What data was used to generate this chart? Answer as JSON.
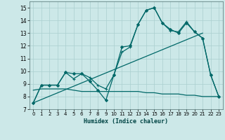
{
  "title": "",
  "xlabel": "Humidex (Indice chaleur)",
  "ylabel": "",
  "xlim": [
    -0.5,
    23.5
  ],
  "ylim": [
    7,
    15.5
  ],
  "yticks": [
    7,
    8,
    9,
    10,
    11,
    12,
    13,
    14,
    15
  ],
  "xticks": [
    0,
    1,
    2,
    3,
    4,
    5,
    6,
    7,
    8,
    9,
    10,
    11,
    12,
    13,
    14,
    15,
    16,
    17,
    18,
    19,
    20,
    21,
    22,
    23
  ],
  "bg_color": "#cce8e8",
  "grid_color": "#aacfcf",
  "line_color": "#006868",
  "lines": [
    {
      "x": [
        0,
        1,
        2,
        3,
        4,
        5,
        6,
        7,
        8,
        9,
        10,
        11,
        12,
        13,
        14,
        15,
        16,
        17,
        18,
        19,
        20,
        21,
        22,
        23
      ],
      "y": [
        7.5,
        8.9,
        8.9,
        8.9,
        9.9,
        9.8,
        9.8,
        9.2,
        8.5,
        7.7,
        9.7,
        11.9,
        12.0,
        13.7,
        14.8,
        15.0,
        13.8,
        13.3,
        13.0,
        13.8,
        13.1,
        12.6,
        9.7,
        8.0
      ],
      "marker": "D",
      "markersize": 2.0,
      "linewidth": 0.9
    },
    {
      "x": [
        0,
        1,
        2,
        3,
        4,
        5,
        6,
        7,
        8,
        9,
        10,
        11,
        12,
        13,
        14,
        15,
        16,
        17,
        18,
        19,
        20,
        21,
        22,
        23
      ],
      "y": [
        7.5,
        8.9,
        8.9,
        8.9,
        9.9,
        9.4,
        9.8,
        9.5,
        8.9,
        8.6,
        9.7,
        11.5,
        11.9,
        13.7,
        14.8,
        15.0,
        13.8,
        13.2,
        13.1,
        13.9,
        13.1,
        12.6,
        9.7,
        8.0
      ],
      "marker": "+",
      "markersize": 3.5,
      "linewidth": 0.9
    },
    {
      "x": [
        0,
        21
      ],
      "y": [
        7.5,
        13.0
      ],
      "marker": null,
      "markersize": 0,
      "linewidth": 0.9
    },
    {
      "x": [
        0,
        1,
        2,
        3,
        4,
        5,
        6,
        7,
        8,
        9,
        10,
        11,
        12,
        13,
        14,
        15,
        16,
        17,
        18,
        19,
        20,
        21,
        22,
        23
      ],
      "y": [
        8.5,
        8.6,
        8.6,
        8.6,
        8.6,
        8.5,
        8.4,
        8.4,
        8.4,
        8.4,
        8.4,
        8.4,
        8.4,
        8.4,
        8.3,
        8.3,
        8.2,
        8.2,
        8.2,
        8.1,
        8.1,
        8.0,
        8.0,
        8.0
      ],
      "marker": null,
      "markersize": 0,
      "linewidth": 0.9
    }
  ]
}
